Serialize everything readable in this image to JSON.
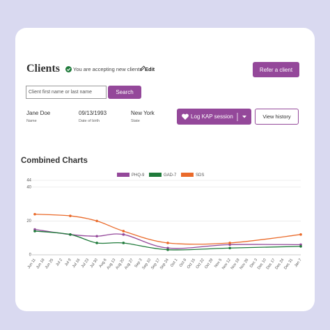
{
  "header": {
    "title": "Clients",
    "status": "You are accepting new clients",
    "edit": "Edit",
    "refer_button": "Refer a client"
  },
  "search": {
    "placeholder": "Client first name or last name",
    "button": "Search"
  },
  "client": {
    "name": "Jane Doe",
    "name_label": "Name",
    "dob": "09/13/1993",
    "dob_label": "Date of birth",
    "state": "New York",
    "state_label": "State",
    "log_button": "Log KAP session",
    "history_button": "View history"
  },
  "section_title": "Combined Charts",
  "chart_data": {
    "type": "line",
    "categories": [
      "Jun 11",
      "Jun 18",
      "Jun 25",
      "Jul 2",
      "Jul 9",
      "Jul 16",
      "Jul 23",
      "Jul 30",
      "Aug 6",
      "Aug 13",
      "Aug 20",
      "Aug 27",
      "Sep 3",
      "Sep 10",
      "Sep 17",
      "Sep 24",
      "Oct 1",
      "Oct 8",
      "Oct 15",
      "Oct 22",
      "Oct 29",
      "Nov 5",
      "Nov 12",
      "Nov 19",
      "Nov 26",
      "Dec 3",
      "Dec 10",
      "Dec 17",
      "Dec 24",
      "Dec 31",
      "Jan 7"
    ],
    "ylim": [
      0,
      44
    ],
    "yticks": [
      0,
      20,
      40,
      44
    ],
    "grid": true,
    "series": [
      {
        "name": "PHQ-9",
        "color": "#94489a",
        "x": [
          "Jun 11",
          "Jul 9",
          "Jul 30",
          "Aug 20",
          "Sep 24",
          "Nov 12",
          "Jan 7"
        ],
        "values": [
          15,
          12,
          11,
          12,
          4,
          6,
          6
        ]
      },
      {
        "name": "GAD-7",
        "color": "#1f7a3a",
        "x": [
          "Jun 11",
          "Jul 9",
          "Jul 30",
          "Aug 20",
          "Sep 24",
          "Nov 12",
          "Jan 7"
        ],
        "values": [
          14,
          12,
          7,
          7,
          3,
          4,
          5
        ]
      },
      {
        "name": "SDS",
        "color": "#ea6a2a",
        "x": [
          "Jun 11",
          "Jul 9",
          "Jul 30",
          "Aug 20",
          "Sep 24",
          "Nov 12",
          "Jan 7"
        ],
        "values": [
          24,
          23,
          20,
          14,
          7,
          7,
          12
        ]
      }
    ]
  }
}
